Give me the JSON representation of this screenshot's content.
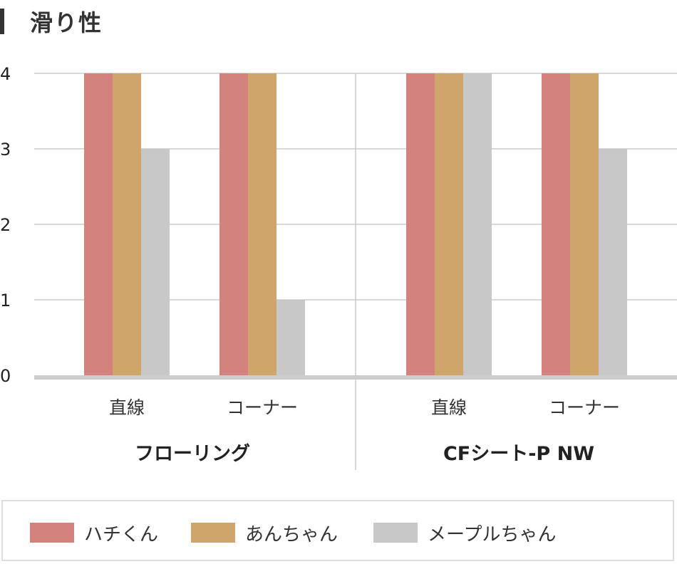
{
  "chart_data": {
    "type": "bar",
    "title": "滑り性",
    "groups": [
      {
        "label": "フローリング",
        "categories": [
          "直線",
          "コーナー"
        ]
      },
      {
        "label": "CFシート-P NW",
        "categories": [
          "直線",
          "コーナー"
        ]
      }
    ],
    "categories": [
      "直線",
      "コーナー",
      "直線",
      "コーナー"
    ],
    "series": [
      {
        "name": "ハチくん",
        "color": "#d4827d",
        "values": [
          4,
          4,
          4,
          4
        ]
      },
      {
        "name": "あんちゃん",
        "color": "#cfa56b",
        "values": [
          4,
          4,
          4,
          4
        ]
      },
      {
        "name": "メープルちゃん",
        "color": "#c8c8c8",
        "values": [
          3,
          1,
          4,
          3
        ]
      }
    ],
    "yticks": [
      0,
      1,
      2,
      3,
      4
    ],
    "ylim": [
      0,
      4
    ],
    "grid": true,
    "legend": "bottom"
  }
}
